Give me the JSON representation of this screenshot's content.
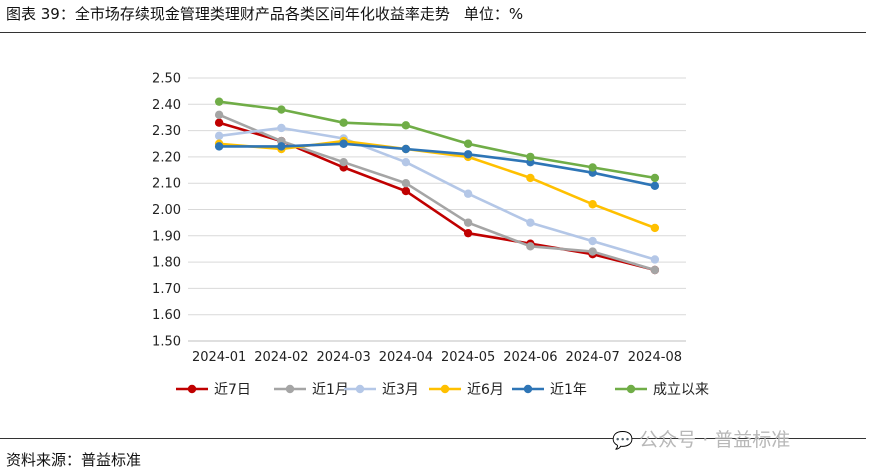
{
  "header": {
    "title": "图表 39：全市场存续现金管理类理财产品各类区间年化收益率走势",
    "unit": "单位：%"
  },
  "footer": {
    "source": "资料来源：普益标准"
  },
  "watermark": {
    "icon": "wechat-icon",
    "text": "公众号 · 普益标准"
  },
  "chart_data": {
    "type": "line",
    "title": "",
    "xlabel": "",
    "ylabel": "",
    "ylim": [
      1.5,
      2.5
    ],
    "yticks": [
      "2.50",
      "2.40",
      "2.30",
      "2.20",
      "2.10",
      "2.00",
      "1.90",
      "1.80",
      "1.70",
      "1.60",
      "1.50"
    ],
    "ytick_values": [
      2.5,
      2.4,
      2.3,
      2.2,
      2.1,
      2.0,
      1.9,
      1.8,
      1.7,
      1.6,
      1.5
    ],
    "grid": "horizontal",
    "legend_position": "bottom",
    "categories": [
      "2024-01",
      "2024-02",
      "2024-03",
      "2024-04",
      "2024-05",
      "2024-06",
      "2024-07",
      "2024-08"
    ],
    "series": [
      {
        "name": "近7日",
        "color": "#c00000",
        "values": [
          2.33,
          2.26,
          2.16,
          2.07,
          1.91,
          1.87,
          1.83,
          1.77
        ]
      },
      {
        "name": "近1月",
        "color": "#a5a5a5",
        "values": [
          2.36,
          2.26,
          2.18,
          2.1,
          1.95,
          1.86,
          1.84,
          1.77
        ]
      },
      {
        "name": "近3月",
        "color": "#b4c7e7",
        "values": [
          2.28,
          2.31,
          2.27,
          2.18,
          2.06,
          1.95,
          1.88,
          1.81
        ]
      },
      {
        "name": "近6月",
        "color": "#ffc000",
        "values": [
          2.25,
          2.23,
          2.26,
          2.23,
          2.2,
          2.12,
          2.02,
          1.93
        ]
      },
      {
        "name": "近1年",
        "color": "#2e75b6",
        "values": [
          2.24,
          2.24,
          2.25,
          2.23,
          2.21,
          2.18,
          2.14,
          2.09
        ]
      },
      {
        "name": "成立以来",
        "color": "#70ad47",
        "values": [
          2.41,
          2.38,
          2.33,
          2.32,
          2.25,
          2.2,
          2.16,
          2.12
        ]
      }
    ]
  }
}
